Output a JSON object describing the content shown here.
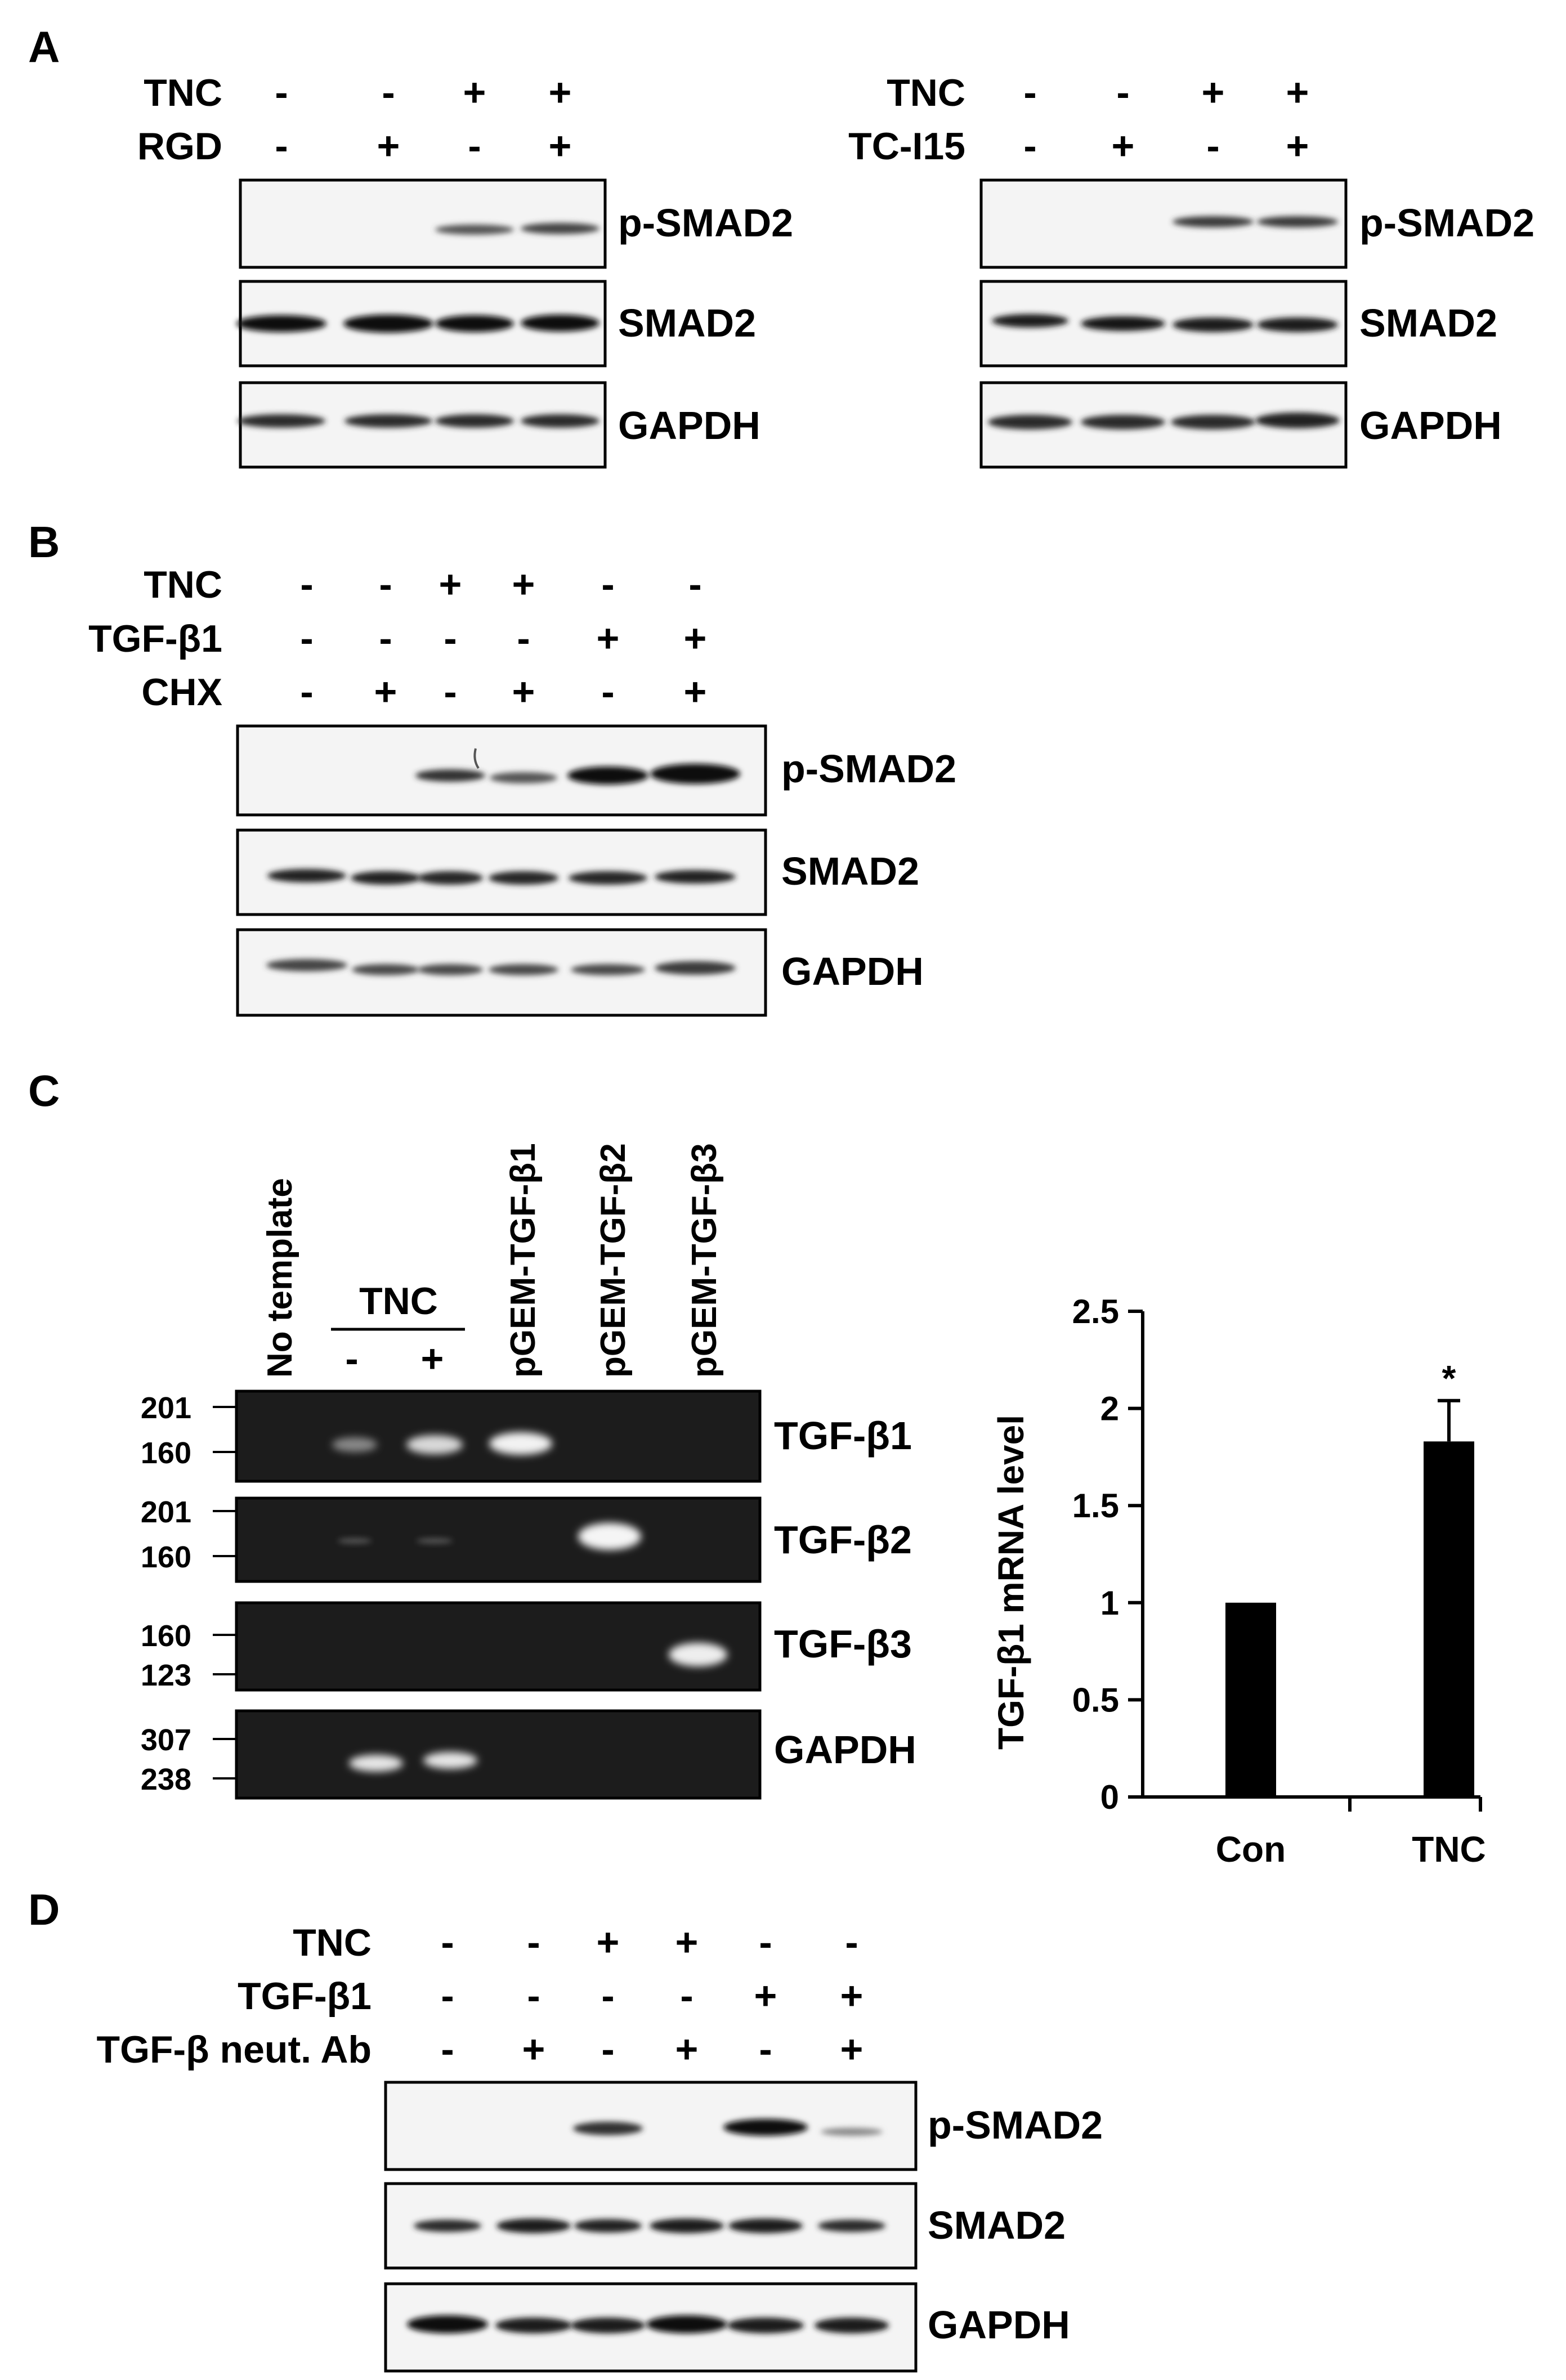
{
  "panel_labels": [
    "A",
    "B",
    "C",
    "D"
  ],
  "panelA": {
    "left": {
      "rows": [
        {
          "name": "TNC",
          "signs": [
            "-",
            "-",
            "+",
            "+"
          ]
        },
        {
          "name": "RGD",
          "signs": [
            "-",
            "+",
            "-",
            "+"
          ]
        }
      ],
      "blots": [
        "p-SMAD2",
        "SMAD2",
        "GAPDH"
      ]
    },
    "right": {
      "rows": [
        {
          "name": "TNC",
          "signs": [
            "-",
            "-",
            "+",
            "+"
          ]
        },
        {
          "name": "TC-I15",
          "signs": [
            "-",
            "+",
            "-",
            "+"
          ]
        }
      ],
      "blots": [
        "p-SMAD2",
        "SMAD2",
        "GAPDH"
      ]
    }
  },
  "panelB": {
    "rows": [
      {
        "name": "TNC",
        "signs": [
          "-",
          "-",
          "+",
          "+",
          "-",
          "-"
        ]
      },
      {
        "name": "TGF-β1",
        "signs": [
          "-",
          "-",
          "-",
          "-",
          "+",
          "+"
        ]
      },
      {
        "name": "CHX",
        "signs": [
          "-",
          "+",
          "-",
          "+",
          "-",
          "+"
        ]
      }
    ],
    "blots": [
      "p-SMAD2",
      "SMAD2",
      "GAPDH"
    ]
  },
  "panelC": {
    "lane_labels": [
      "No template",
      "pGEM-TGF-β1",
      "pGEM-TGF-β2",
      "pGEM-TGF-β3"
    ],
    "tnc_label": "TNC",
    "tnc_signs": [
      "-",
      "+"
    ],
    "gels": [
      {
        "name": "TGF-β1",
        "markers": [
          "201",
          "160"
        ]
      },
      {
        "name": "TGF-β2",
        "markers": [
          "201",
          "160"
        ]
      },
      {
        "name": "TGF-β3",
        "markers": [
          "160",
          "123"
        ]
      },
      {
        "name": "GAPDH",
        "markers": [
          "307",
          "238"
        ]
      }
    ]
  },
  "chart_data": {
    "type": "bar",
    "categories": [
      "Con",
      "TNC"
    ],
    "values": [
      1.0,
      1.83
    ],
    "errors": [
      0.01,
      0.21
    ],
    "significance": [
      "",
      "*"
    ],
    "ylabel": "TGF-β1 mRNA level",
    "ylim": [
      0,
      2.5
    ],
    "yticks": [
      "0",
      "0.5",
      "1",
      "1.5",
      "2",
      "2.5"
    ],
    "bar_color": "#000000",
    "grid": false
  },
  "panelD": {
    "rows": [
      {
        "name": "TNC",
        "signs": [
          "-",
          "-",
          "+",
          "+",
          "-",
          "-"
        ]
      },
      {
        "name": "TGF-β1",
        "signs": [
          "-",
          "-",
          "-",
          "-",
          "+",
          "+"
        ]
      },
      {
        "name": "TGF-β neut. Ab",
        "signs": [
          "-",
          "+",
          "-",
          "+",
          "-",
          "+"
        ]
      }
    ],
    "blots": [
      "p-SMAD2",
      "SMAD2",
      "GAPDH"
    ]
  }
}
